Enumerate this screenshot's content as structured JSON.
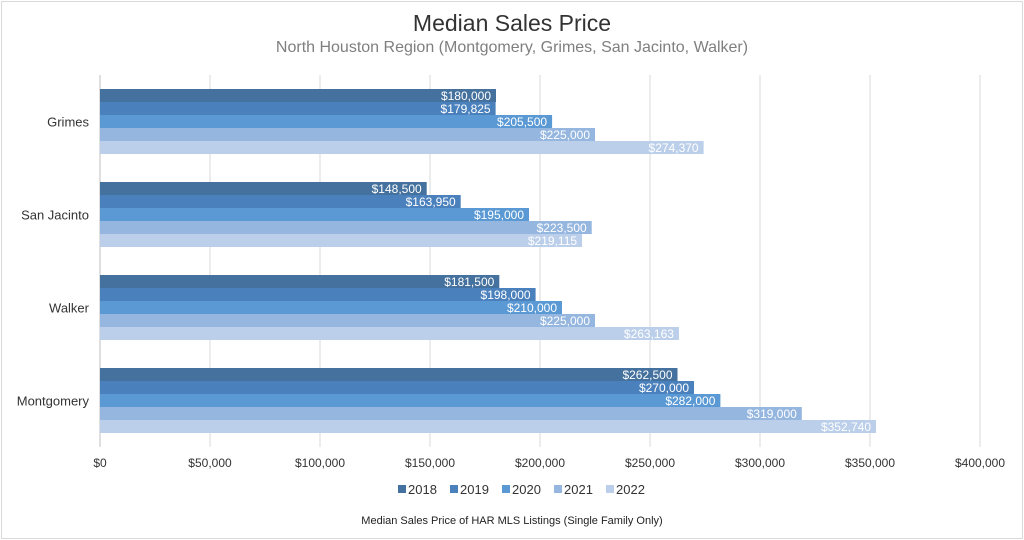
{
  "chart_data": {
    "type": "bar",
    "orientation": "horizontal",
    "title": "Median Sales Price",
    "subtitle": "North Houston Region (Montgomery, Grimes, San Jacinto, Walker)",
    "footnote": "Median Sales Price of HAR MLS Listings (Single Family Only)",
    "categories": [
      "Grimes",
      "San Jacinto",
      "Walker",
      "Montgomery"
    ],
    "series": [
      {
        "name": "2018",
        "color": "#44719d",
        "values": [
          180000,
          148500,
          181500,
          262500
        ],
        "labels": [
          "$180,000",
          "$148,500",
          "$181,500",
          "$262,500"
        ]
      },
      {
        "name": "2019",
        "color": "#4a80bc",
        "values": [
          179825,
          163950,
          198000,
          270000
        ],
        "labels": [
          "$179,825",
          "$163,950",
          "$198,000",
          "$270,000"
        ]
      },
      {
        "name": "2020",
        "color": "#5a99d4",
        "values": [
          205500,
          195000,
          210000,
          282000
        ],
        "labels": [
          "$205,500",
          "$195,000",
          "$210,000",
          "$282,000"
        ]
      },
      {
        "name": "2021",
        "color": "#95b6df",
        "values": [
          225000,
          223500,
          225000,
          319000
        ],
        "labels": [
          "$225,000",
          "$223,500",
          "$225,000",
          "$319,000"
        ]
      },
      {
        "name": "2022",
        "color": "#bccfea",
        "values": [
          274370,
          219115,
          263163,
          352740
        ],
        "labels": [
          "$274,370",
          "$219,115",
          "$263,163",
          "$352,740"
        ]
      }
    ],
    "xlim": [
      0,
      400000
    ],
    "xticks": [
      0,
      50000,
      100000,
      150000,
      200000,
      250000,
      300000,
      350000,
      400000
    ],
    "xtick_labels": [
      "$0",
      "$50,000",
      "$100,000",
      "$150,000",
      "$200,000",
      "$250,000",
      "$300,000",
      "$350,000",
      "$400,000"
    ],
    "grid": true,
    "legend": "bottom"
  }
}
